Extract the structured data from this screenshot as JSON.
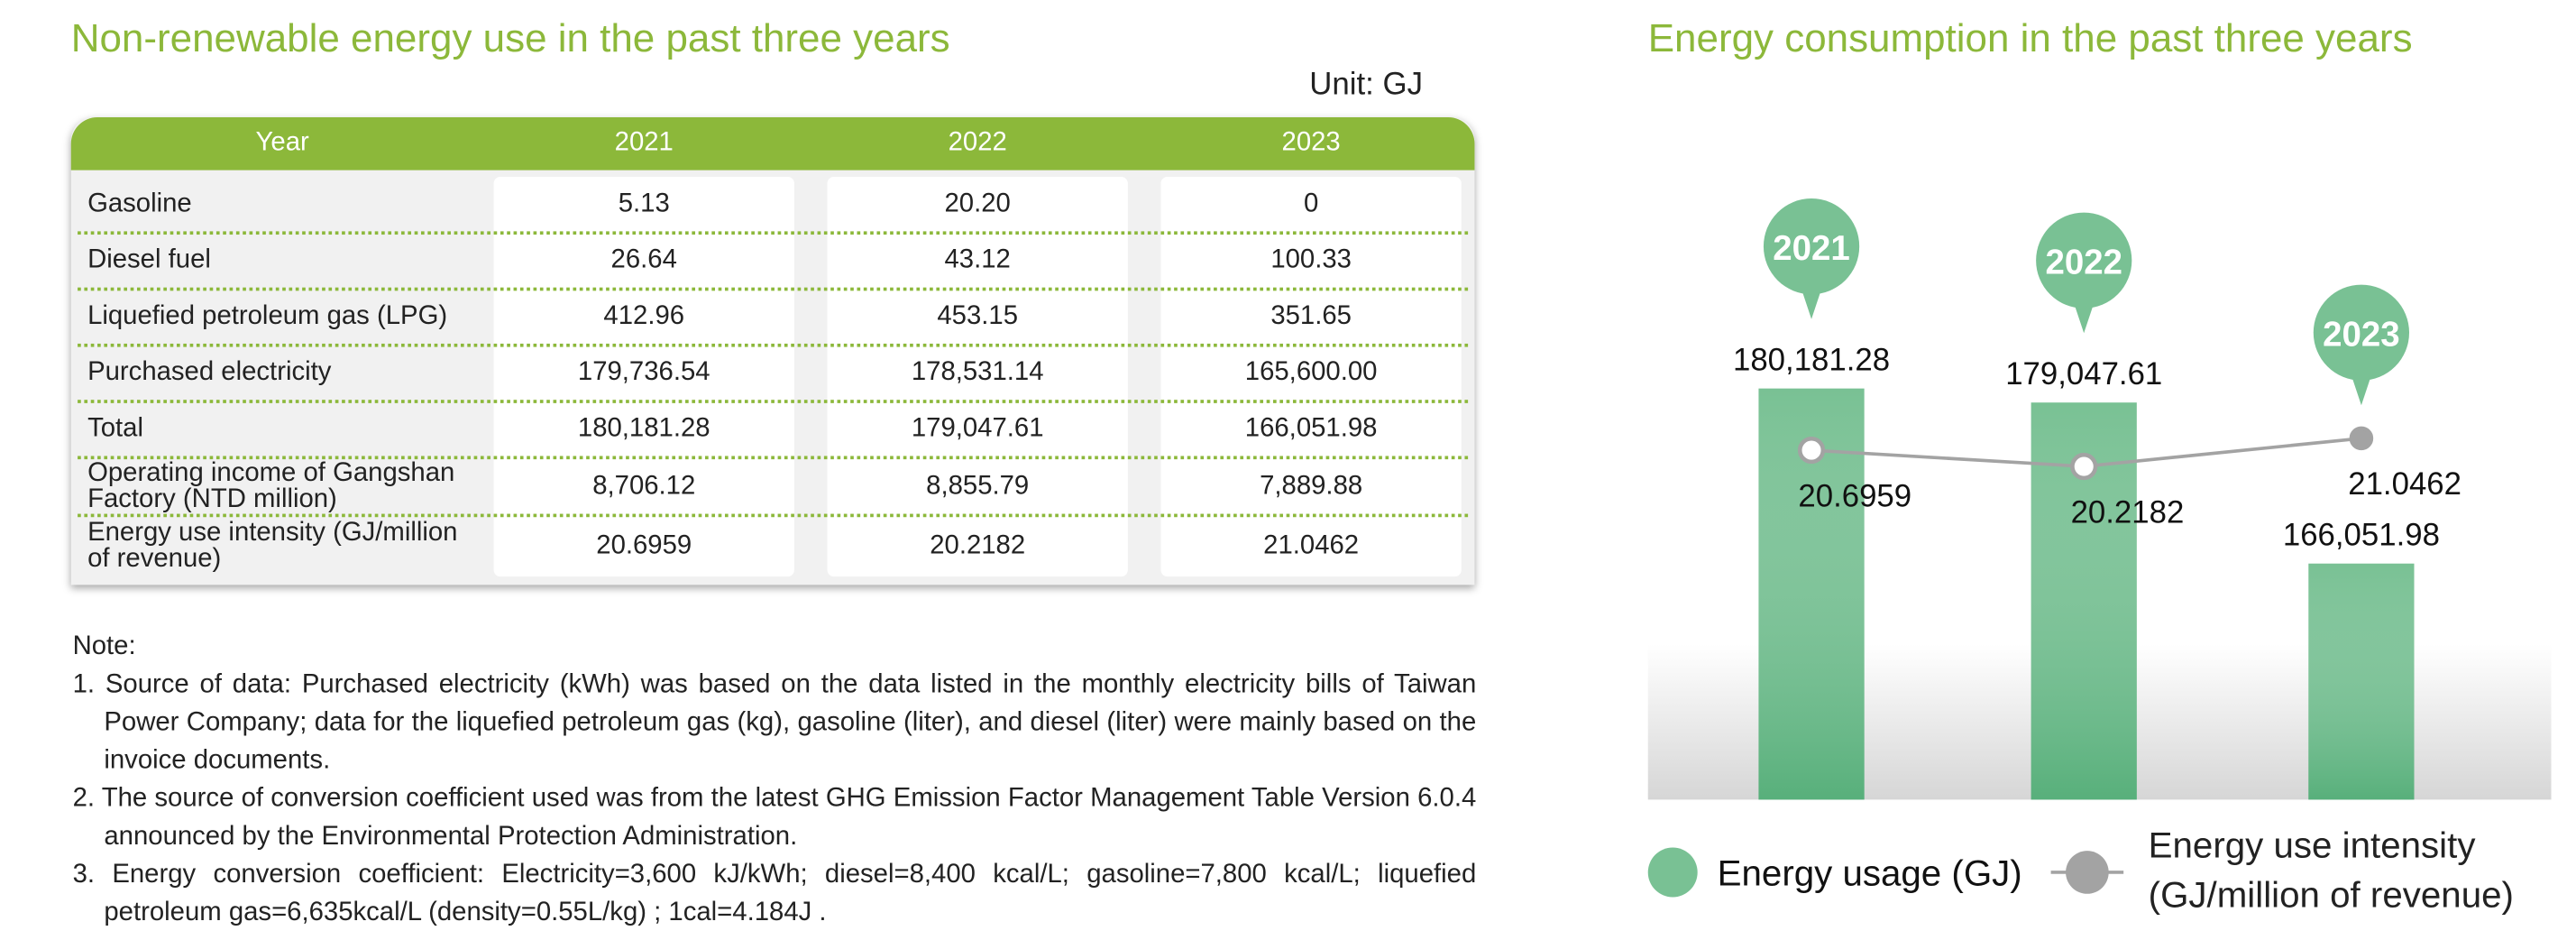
{
  "left": {
    "title": "Non-renewable energy use in the past three years",
    "unit": "Unit: GJ",
    "table": {
      "header": [
        "Year",
        "2021",
        "2022",
        "2023"
      ],
      "rows": [
        [
          "Gasoline",
          "5.13",
          "20.20",
          "0"
        ],
        [
          "Diesel fuel",
          "26.64",
          "43.12",
          "100.33"
        ],
        [
          "Liquefied petroleum gas (LPG)",
          "412.96",
          "453.15",
          "351.65"
        ],
        [
          "Purchased electricity",
          "179,736.54",
          "178,531.14",
          "165,600.00"
        ],
        [
          "Total",
          "180,181.28",
          "179,047.61",
          "166,051.98"
        ],
        [
          "Operating income of Gangshan Factory (NTD million)",
          "8,706.12",
          "8,855.79",
          "7,889.88"
        ],
        [
          "Energy use intensity (GJ/million of revenue)",
          "20.6959",
          "20.2182",
          "21.0462"
        ]
      ]
    },
    "note": {
      "heading": "Note:",
      "items": [
        "1. Source of data: Purchased electricity (kWh) was based on the data listed in the monthly electricity bills of Taiwan Power Company; data for the liquefied petroleum gas (kg), gasoline (liter), and diesel (liter) were mainly based on the invoice documents.",
        "2. The source of conversion coefficient used was from the latest GHG Emission Factor Management Table Version 6.0.4 announced by the Environmental Protection Administration.",
        "3. Energy conversion coefficient: Electricity=3,600 kJ/kWh; diesel=8,400 kcal/L; gasoline=7,800 kcal/L; liquefied petroleum gas=6,635kcal/L (density=0.55L/kg) ; 1cal=4.184J ."
      ]
    }
  },
  "chart_data": {
    "type": "bar_line",
    "title": "Energy consumption in the past three years",
    "categories": [
      "2021",
      "2022",
      "2023"
    ],
    "series": [
      {
        "name": "Energy usage (GJ)",
        "type": "bar",
        "color": "#79c194",
        "values": [
          180181.28,
          179047.61,
          166051.98
        ],
        "value_labels": [
          "180,181.28",
          "179,047.61",
          "166,051.98"
        ]
      },
      {
        "name": "Energy use intensity (GJ/million of revenue)",
        "type": "line",
        "color": "#a3a3a3",
        "axis": "y2",
        "values": [
          20.6959,
          20.2182,
          21.0462
        ]
      }
    ],
    "ylim": [
      147000,
      190000
    ],
    "y2lim": [
      10.4,
      26.1
    ],
    "category_color": "#79c194"
  }
}
